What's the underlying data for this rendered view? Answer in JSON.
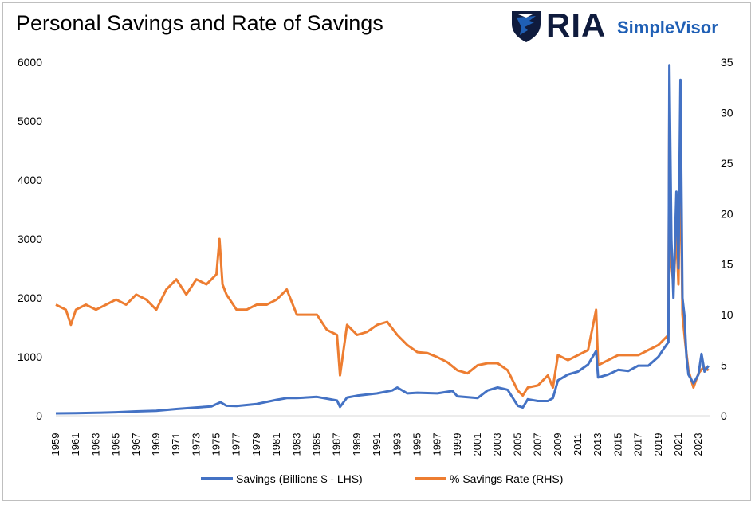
{
  "title": "Personal Savings and Rate of Savings",
  "logo": {
    "brand": "RIA",
    "product": "SimpleVisor"
  },
  "colors": {
    "savings": "#4472c4",
    "rate": "#ed7d31",
    "brand_dark": "#0f1b3d",
    "brand_blue": "#1f5fb5"
  },
  "chart_data": {
    "type": "line",
    "title": "Personal Savings and Rate of Savings",
    "x_ticks": [
      "1959",
      "1961",
      "1963",
      "1965",
      "1967",
      "1969",
      "1971",
      "1973",
      "1975",
      "1977",
      "1979",
      "1981",
      "1983",
      "1985",
      "1987",
      "1989",
      "1991",
      "1993",
      "1995",
      "1997",
      "1999",
      "2001",
      "2003",
      "2005",
      "2007",
      "2009",
      "2011",
      "2013",
      "2015",
      "2017",
      "2019",
      "2021",
      "2023"
    ],
    "y_left": {
      "ticks": [
        "0",
        "1000",
        "2000",
        "3000",
        "4000",
        "5000",
        "6000"
      ],
      "lim": [
        0,
        6000
      ]
    },
    "y_right": {
      "ticks": [
        "0",
        "5",
        "10",
        "15",
        "20",
        "25",
        "30",
        "35"
      ],
      "lim": [
        0,
        35
      ]
    },
    "grid": false,
    "legend_position": "bottom",
    "series": [
      {
        "name": "Savings (Billions $ - LHS)",
        "axis": "left",
        "x": [
          1959,
          1961,
          1963,
          1965,
          1967,
          1969,
          1971,
          1973,
          1974.5,
          1975.4,
          1976,
          1977,
          1979,
          1981,
          1982,
          1983,
          1985,
          1987,
          1987.3,
          1988,
          1989,
          1991,
          1992.5,
          1993,
          1994,
          1995,
          1997,
          1998.5,
          1999,
          2001,
          2002,
          2003,
          2004,
          2005,
          2005.5,
          2006,
          2007,
          2008,
          2008.5,
          2009,
          2010,
          2011,
          2012,
          2012.8,
          2013,
          2014,
          2015,
          2016,
          2017,
          2018,
          2019,
          2019.5,
          2020.0,
          2020.1,
          2020.3,
          2020.5,
          2020.8,
          2021.0,
          2021.2,
          2021.4,
          2021.6,
          2021.8,
          2022,
          2022.5,
          2023,
          2023.3,
          2023.6,
          2024
        ],
        "values": [
          40,
          45,
          50,
          60,
          75,
          85,
          115,
          140,
          160,
          230,
          170,
          165,
          200,
          270,
          300,
          300,
          320,
          260,
          150,
          310,
          340,
          380,
          430,
          480,
          380,
          390,
          380,
          420,
          330,
          300,
          430,
          480,
          440,
          170,
          140,
          280,
          250,
          250,
          300,
          600,
          700,
          750,
          870,
          1100,
          650,
          700,
          780,
          760,
          850,
          850,
          1000,
          1130,
          1250,
          5950,
          3000,
          2000,
          3800,
          2500,
          5700,
          2000,
          1700,
          1000,
          700,
          550,
          700,
          1050,
          750,
          850
        ]
      },
      {
        "name": "% Savings Rate (RHS)",
        "axis": "right",
        "x": [
          1959,
          1960,
          1960.5,
          1961,
          1962,
          1963,
          1964,
          1965,
          1966,
          1967,
          1968,
          1969,
          1970,
          1971,
          1972,
          1973,
          1974,
          1975,
          1975.3,
          1975.6,
          1976,
          1977,
          1978,
          1979,
          1980,
          1981,
          1982,
          1983,
          1984,
          1985,
          1986,
          1987,
          1987.3,
          1988,
          1989,
          1990,
          1991,
          1992,
          1993,
          1994,
          1995,
          1996,
          1997,
          1998,
          1999,
          2000,
          2001,
          2002,
          2003,
          2004,
          2005,
          2005.5,
          2006,
          2007,
          2008,
          2008.5,
          2009,
          2010,
          2011,
          2012,
          2012.8,
          2013,
          2014,
          2015,
          2016,
          2017,
          2018,
          2019,
          2020.0,
          2020.1,
          2020.3,
          2020.5,
          2020.8,
          2021.0,
          2021.2,
          2021.4,
          2021.7,
          2022,
          2022.5,
          2023,
          2023.5,
          2024
        ],
        "values": [
          11,
          10.5,
          9,
          10.5,
          11,
          10.5,
          11,
          11.5,
          11,
          12,
          11.5,
          10.5,
          12.5,
          13.5,
          12,
          13.5,
          13,
          14,
          17.5,
          13,
          12,
          10.5,
          10.5,
          11,
          11,
          11.5,
          12.5,
          10,
          10,
          10,
          8.5,
          8,
          4,
          9,
          8,
          8.3,
          9,
          9.3,
          8,
          7,
          6.3,
          6.2,
          5.8,
          5.3,
          4.5,
          4.2,
          5,
          5.2,
          5.2,
          4.5,
          2.5,
          2,
          2.8,
          3,
          4,
          2.8,
          6,
          5.5,
          6,
          6.5,
          10.5,
          5,
          5.5,
          6,
          6,
          6,
          6.5,
          7,
          8,
          32,
          15,
          13,
          18,
          13,
          26,
          10,
          7,
          4.5,
          2.8,
          4.2,
          4.8,
          4.5
        ]
      }
    ]
  }
}
